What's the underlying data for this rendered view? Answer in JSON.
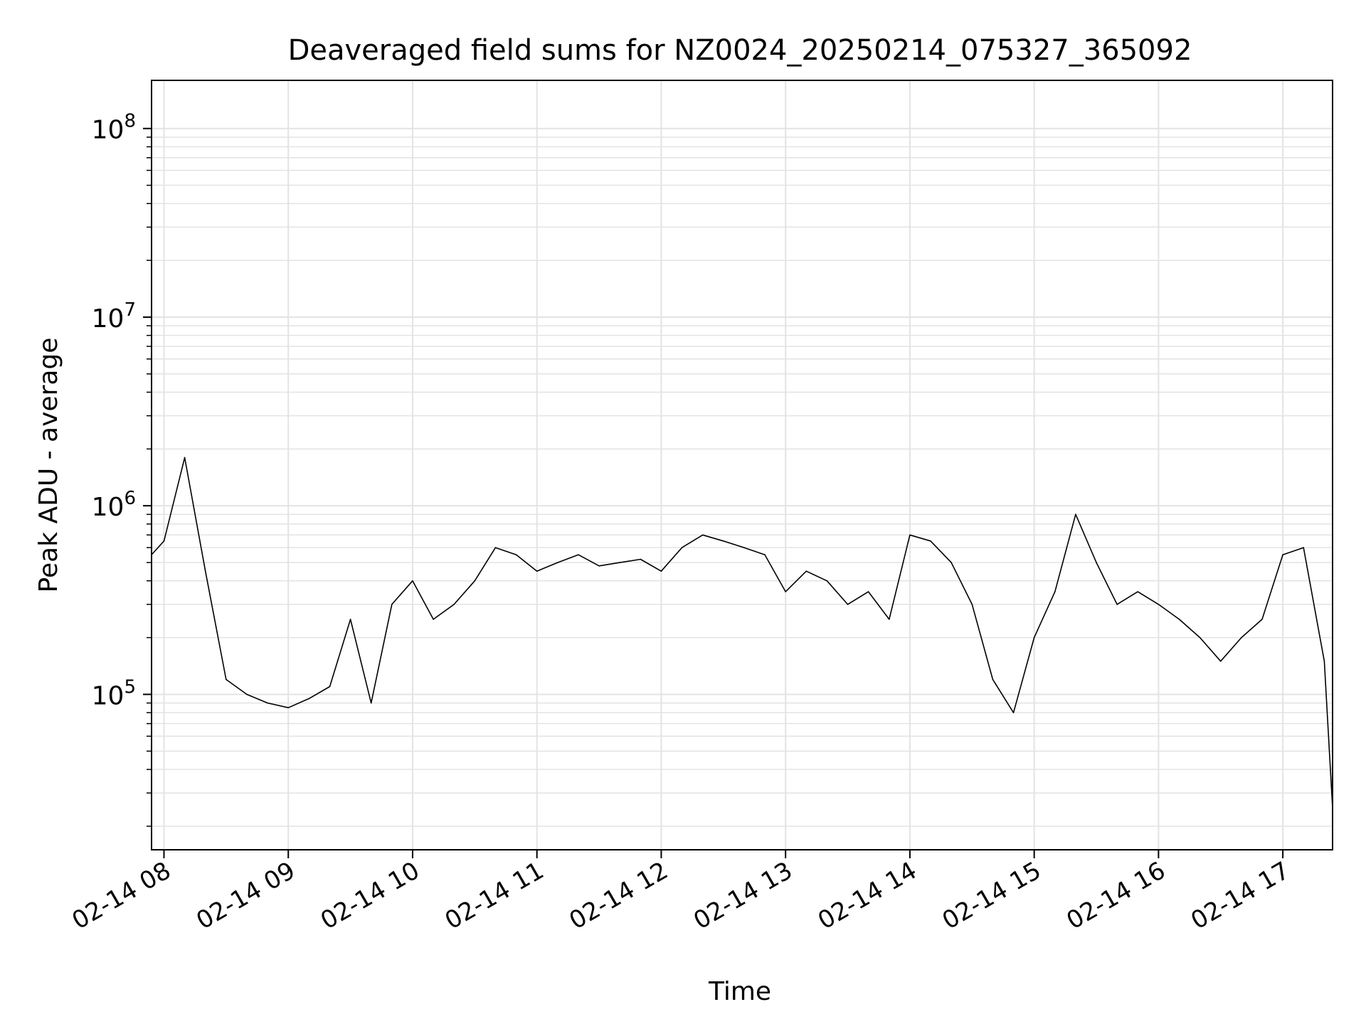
{
  "chart_data": {
    "type": "line",
    "title": "Deaveraged field sums for NZ0024_20250214_075327_365092",
    "xlabel": "Time",
    "ylabel": "Peak ADU - average",
    "xlim": [
      "02-14 07:54",
      "02-14 17:24"
    ],
    "ylim": [
      15000,
      180000000
    ],
    "yscale": "log",
    "x_tick_labels": [
      "02-14 08",
      "02-14 09",
      "02-14 10",
      "02-14 11",
      "02-14 12",
      "02-14 13",
      "02-14 14",
      "02-14 15",
      "02-14 16",
      "02-14 17"
    ],
    "y_tick_labels": [
      {
        "base": "10",
        "exp": "5"
      },
      {
        "base": "10",
        "exp": "6"
      },
      {
        "base": "10",
        "exp": "7"
      },
      {
        "base": "10",
        "exp": "8"
      }
    ],
    "grid": true,
    "line_color": "#000000",
    "series": [
      {
        "x": [
          "02-14 07:54",
          "02-14 08:00",
          "02-14 08:10",
          "02-14 08:20",
          "02-14 08:30",
          "02-14 08:40",
          "02-14 08:50",
          "02-14 09:00",
          "02-14 09:10",
          "02-14 09:20",
          "02-14 09:30",
          "02-14 09:40",
          "02-14 09:50",
          "02-14 10:00",
          "02-14 10:10",
          "02-14 10:20",
          "02-14 10:30",
          "02-14 10:40",
          "02-14 10:50",
          "02-14 11:00",
          "02-14 11:10",
          "02-14 11:20",
          "02-14 11:30",
          "02-14 11:40",
          "02-14 11:50",
          "02-14 12:00",
          "02-14 12:10",
          "02-14 12:20",
          "02-14 12:30",
          "02-14 12:40",
          "02-14 12:50",
          "02-14 13:00",
          "02-14 13:10",
          "02-14 13:20",
          "02-14 13:30",
          "02-14 13:40",
          "02-14 13:50",
          "02-14 14:00",
          "02-14 14:10",
          "02-14 14:20",
          "02-14 14:30",
          "02-14 14:40",
          "02-14 14:50",
          "02-14 15:00",
          "02-14 15:10",
          "02-14 15:20",
          "02-14 15:30",
          "02-14 15:40",
          "02-14 15:50",
          "02-14 16:00",
          "02-14 16:10",
          "02-14 16:20",
          "02-14 16:30",
          "02-14 16:40",
          "02-14 16:50",
          "02-14 17:00",
          "02-14 17:10",
          "02-14 17:20",
          "02-14 17:24"
        ],
        "y": [
          550000,
          650000,
          1800000,
          450000,
          120000,
          100000,
          90000,
          85000,
          95000,
          110000,
          250000,
          90000,
          300000,
          400000,
          250000,
          300000,
          400000,
          600000,
          550000,
          450000,
          500000,
          550000,
          480000,
          500000,
          520000,
          450000,
          600000,
          700000,
          650000,
          600000,
          550000,
          350000,
          450000,
          400000,
          300000,
          350000,
          250000,
          700000,
          650000,
          500000,
          300000,
          120000,
          80000,
          200000,
          350000,
          900000,
          500000,
          300000,
          350000,
          300000,
          250000,
          200000,
          150000,
          200000,
          250000,
          550000,
          600000,
          150000,
          25000
        ]
      }
    ]
  }
}
